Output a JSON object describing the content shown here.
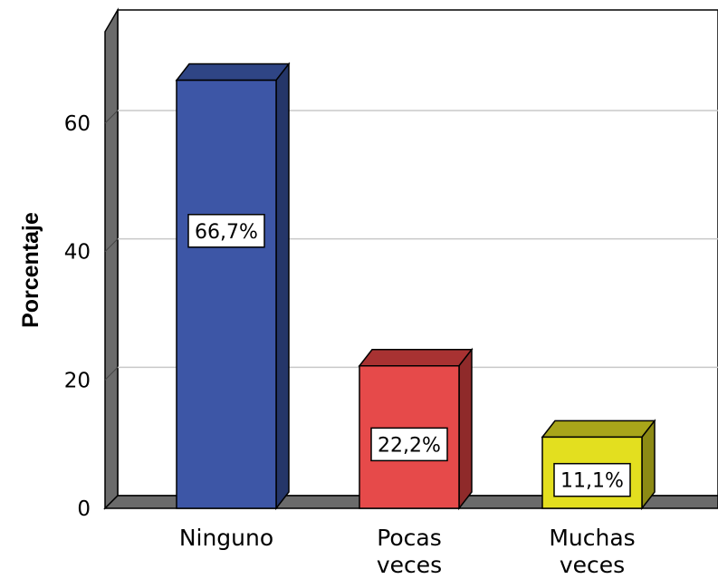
{
  "chart_data": {
    "type": "bar",
    "style": "3d",
    "ylabel": "Porcentaje",
    "ylim": [
      0,
      75
    ],
    "yticks": [
      0,
      20,
      40,
      60
    ],
    "grid": true,
    "categories": [
      {
        "lines": [
          "Ninguno"
        ],
        "label": "Ninguno"
      },
      {
        "lines": [
          "Pocas",
          "veces"
        ],
        "label": "Pocas veces"
      },
      {
        "lines": [
          "Muchas",
          "veces"
        ],
        "label": "Muchas veces"
      }
    ],
    "values": [
      66.7,
      22.2,
      11.1
    ],
    "data_labels": [
      "66,7%",
      "22,2%",
      "11,1%"
    ],
    "colors": [
      "#3d56a6",
      "#e64a4a",
      "#e3df1f"
    ],
    "side_colors": [
      "#253669",
      "#8f2a2a",
      "#8c8a14"
    ],
    "top_colors": [
      "#2f4585",
      "#a83232",
      "#a8a51a"
    ]
  }
}
